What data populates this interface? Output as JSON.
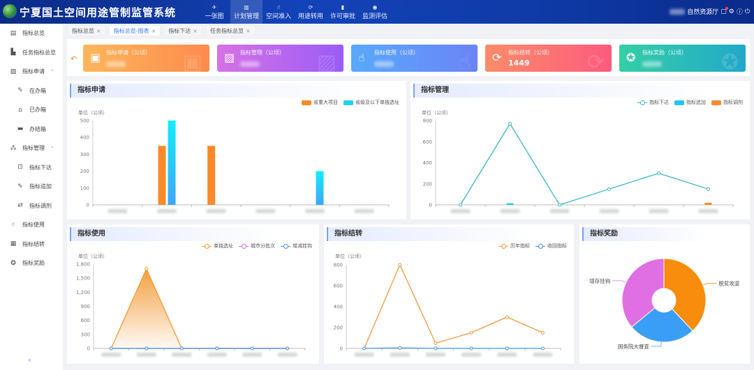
{
  "header": {
    "title": "宁夏国土空间用途管制监管系统",
    "nav": [
      {
        "label": "一张图",
        "icon": "map-icon"
      },
      {
        "label": "计划管理",
        "icon": "chart-icon",
        "active": true
      },
      {
        "label": "空间准入",
        "icon": "hand-icon"
      },
      {
        "label": "用途转用",
        "icon": "refresh-icon"
      },
      {
        "label": "许可审批",
        "icon": "bars-icon"
      },
      {
        "label": "监测评估",
        "icon": "eye-icon"
      }
    ],
    "org": "自然资源厅"
  },
  "sidebar": {
    "items": [
      {
        "label": "指标总览",
        "icon": "list-icon"
      },
      {
        "label": "任务指标总览",
        "icon": "bar-chart-icon"
      },
      {
        "label": "指标申请",
        "icon": "doc-icon",
        "expanded": true
      },
      {
        "label": "在办箱",
        "icon": "edit-icon",
        "sub": true
      },
      {
        "label": "已办箱",
        "icon": "inbox-icon",
        "sub": true
      },
      {
        "label": "办结箱",
        "icon": "archive-icon",
        "sub": true
      },
      {
        "label": "指标管理",
        "icon": "network-icon",
        "expanded": true
      },
      {
        "label": "指标下达",
        "icon": "issue-icon",
        "sub": true
      },
      {
        "label": "指标追加",
        "icon": "edit-icon",
        "sub": true
      },
      {
        "label": "指标调剂",
        "icon": "exchange-icon",
        "sub": true
      },
      {
        "label": "指标使用",
        "icon": "hand-icon"
      },
      {
        "label": "指标结转",
        "icon": "transfer-icon"
      },
      {
        "label": "指标奖励",
        "icon": "award-icon"
      }
    ],
    "collapse_icon": "chevron-left-icon"
  },
  "tabs": [
    {
      "label": "指标总览"
    },
    {
      "label": "指标总览-图表",
      "active": true
    },
    {
      "label": "指标下达"
    },
    {
      "label": "任务指标总览"
    }
  ],
  "cards": [
    {
      "label": "指标申请（公顷）",
      "value": null,
      "colors": [
        "#fcb65a",
        "#fd8b4e"
      ],
      "icon": "calendar-user-icon"
    },
    {
      "label": "指标管理（公顷）",
      "value": null,
      "colors": [
        "#d672e6",
        "#9a5cf6"
      ],
      "icon": "image-gear-icon"
    },
    {
      "label": "指标使用（公顷）",
      "value": null,
      "colors": [
        "#58a9fa",
        "#6b84f7"
      ],
      "icon": "hand-pointer-icon"
    },
    {
      "label": "指标结转（公顷）",
      "value": "1449",
      "colors": [
        "#fb8c68",
        "#fd5b7e"
      ],
      "icon": "refresh-icon"
    },
    {
      "label": "指标奖励（公顷）",
      "value": null,
      "colors": [
        "#35cfa6",
        "#22a8c9"
      ],
      "icon": "award-icon"
    }
  ],
  "chart_data": [
    {
      "id": "apply",
      "title": "指标申请",
      "type": "bar",
      "unit": "单位（公顷）",
      "ylim": [
        0,
        500
      ],
      "yticks": [
        0,
        100,
        200,
        300,
        400,
        500
      ],
      "categories": [
        "",
        "",
        "",
        "",
        "",
        ""
      ],
      "series": [
        {
          "name": "省重大项目",
          "type": "bar",
          "color": "#fa8a28",
          "values": [
            0,
            350,
            350,
            0,
            0,
            0
          ]
        },
        {
          "name": "省级及以下单独选址",
          "type": "bar",
          "color": "#1fd3f5",
          "values": [
            0,
            500,
            0,
            0,
            200,
            0
          ]
        }
      ]
    },
    {
      "id": "manage",
      "title": "指标管理",
      "type": "line",
      "unit": "单位（公顷）",
      "ylim": [
        0,
        800
      ],
      "yticks": [
        0,
        200,
        400,
        600,
        800
      ],
      "categories": [
        "",
        "",
        "",
        "",
        "",
        ""
      ],
      "series": [
        {
          "name": "指标下达",
          "type": "line",
          "color": "#3ab8c0",
          "values": [
            0,
            770,
            0,
            150,
            300,
            150
          ]
        },
        {
          "name": "指标追加",
          "type": "bar",
          "color": "#22c4f5",
          "values": [
            0,
            15,
            0,
            0,
            0,
            0
          ]
        },
        {
          "name": "指标调剂",
          "type": "bar",
          "color": "#f78a2e",
          "values": [
            0,
            0,
            0,
            0,
            0,
            20
          ]
        }
      ]
    },
    {
      "id": "use",
      "title": "指标使用",
      "type": "area",
      "unit": "单位（公顷）",
      "ylim": [
        0,
        1800
      ],
      "yticks": [
        0,
        300,
        600,
        900,
        1200,
        1500,
        1800
      ],
      "ytick_labels": [
        "0",
        "300",
        "600",
        "900",
        "1,200",
        "1,500",
        "1,800"
      ],
      "categories": [
        "",
        "",
        "",
        "",
        "",
        ""
      ],
      "series": [
        {
          "name": "单独选址",
          "type": "area",
          "color": "#f39a34",
          "values": [
            0,
            1700,
            0,
            0,
            0,
            0
          ]
        },
        {
          "name": "城市分批次",
          "type": "line",
          "color": "#d46fe0",
          "values": [
            0,
            0,
            0,
            0,
            0,
            0
          ]
        },
        {
          "name": "增减挂钩",
          "type": "line",
          "color": "#3f95e6",
          "values": [
            0,
            0,
            0,
            0,
            0,
            0
          ]
        }
      ]
    },
    {
      "id": "carry",
      "title": "指标结转",
      "type": "line",
      "unit": "单位（公顷）",
      "ylim": [
        0,
        800
      ],
      "yticks": [
        0,
        200,
        400,
        600,
        800
      ],
      "categories": [
        "",
        "",
        "",
        "",
        "",
        ""
      ],
      "series": [
        {
          "name": "历年指标",
          "type": "line",
          "color": "#f29a3a",
          "values": [
            0,
            800,
            50,
            150,
            300,
            150
          ]
        },
        {
          "name": "收回指标",
          "type": "line",
          "color": "#3f95e6",
          "values": [
            0,
            5,
            0,
            0,
            0,
            0
          ]
        }
      ]
    },
    {
      "id": "reward",
      "title": "指标奖励",
      "type": "pie",
      "slices": [
        {
          "name": "脱贫攻坚",
          "value": 38,
          "color": "#f88c0c"
        },
        {
          "name": "国务院大督查",
          "value": 26,
          "color": "#3a9ef6"
        },
        {
          "name": "增存挂钩",
          "value": 36,
          "color": "#df6fe2"
        }
      ]
    }
  ]
}
